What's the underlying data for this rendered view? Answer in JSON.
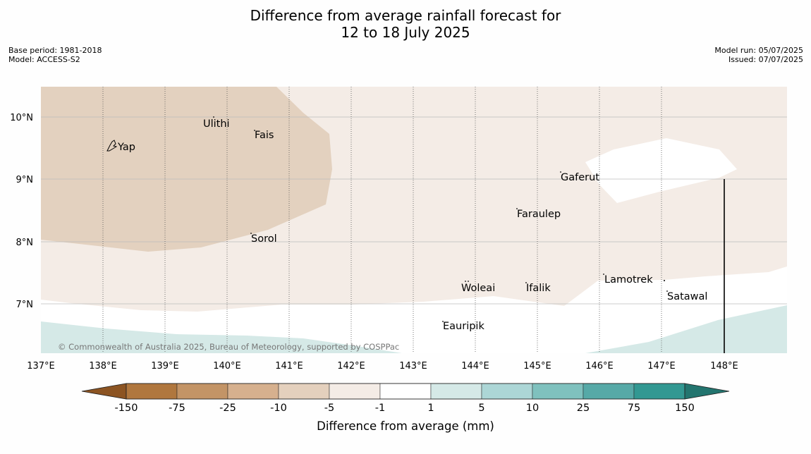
{
  "title": {
    "line1": "Difference from average rainfall forecast for",
    "line2": "12 to 18 July 2025"
  },
  "meta": {
    "base_period": "Base period: 1981-2018",
    "model": "Model: ACCESS-S2",
    "model_run": "Model run: 05/07/2025",
    "issued": "Issued: 07/07/2025"
  },
  "copyright": "© Commonwealth of Australia 2025, Bureau of Meteorology, supported by COSPPac",
  "map": {
    "lon_ticks": [
      "137°E",
      "138°E",
      "139°E",
      "140°E",
      "141°E",
      "142°E",
      "143°E",
      "144°E",
      "145°E",
      "146°E",
      "147°E",
      "148°E"
    ],
    "lat_ticks": [
      "10°N",
      "9°N",
      "8°N",
      "7°N"
    ],
    "places": [
      "Yap",
      "Ulithi",
      "Fais",
      "Gaferut",
      "Faraulep",
      "Sorol",
      "Woleai",
      "Ifalik",
      "Lamotrek",
      "Satawal",
      "Eauripik"
    ]
  },
  "legend": {
    "label": "Difference from average (mm)",
    "ticks": [
      "-150",
      "-75",
      "-25",
      "-10",
      "-5",
      "-1",
      "1",
      "5",
      "10",
      "25",
      "75",
      "150"
    ],
    "colors": [
      "#8c5422",
      "#b0773e",
      "#c39466",
      "#d6b08e",
      "#e4d0bd",
      "#f4ece6",
      "#ffffff",
      "#d5e9e7",
      "#acd6d6",
      "#7fc1be",
      "#56a9a7",
      "#329892",
      "#23756f"
    ]
  }
}
